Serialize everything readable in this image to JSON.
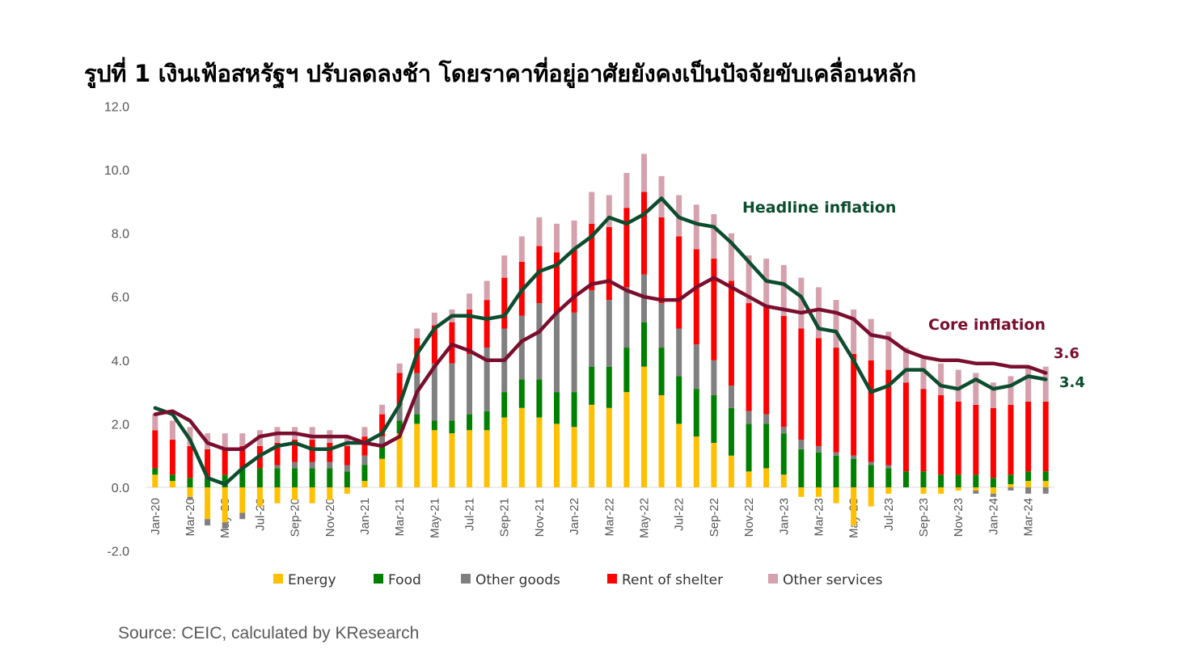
{
  "title": "รูปที่ 1 เงินเฟ้อสหรัฐฯ ปรับลดลงช้า โดยราคาที่อยู่อาศัยยังคงเป็นปัจจัยขับเคลื่อนหลัก",
  "source": "Source: CEIC, calculated by KResearch",
  "chart_data": {
    "type": "bar",
    "stacked": true,
    "ylim": [
      -2,
      12
    ],
    "yticks": [
      "-2.0",
      "0.0",
      "2.0",
      "4.0",
      "6.0",
      "8.0",
      "10.0",
      "12.0"
    ],
    "ytick_values": [
      -2,
      0,
      2,
      4,
      6,
      8,
      10,
      12
    ],
    "categories": [
      "Jan-20",
      "Feb-20",
      "Mar-20",
      "Apr-20",
      "May-20",
      "Jun-20",
      "Jul-20",
      "Aug-20",
      "Sep-20",
      "Oct-20",
      "Nov-20",
      "Dec-20",
      "Jan-21",
      "Feb-21",
      "Mar-21",
      "Apr-21",
      "May-21",
      "Jun-21",
      "Jul-21",
      "Aug-21",
      "Sep-21",
      "Oct-21",
      "Nov-21",
      "Dec-21",
      "Jan-22",
      "Feb-22",
      "Mar-22",
      "Apr-22",
      "May-22",
      "Jun-22",
      "Jul-22",
      "Aug-22",
      "Sep-22",
      "Oct-22",
      "Nov-22",
      "Dec-22",
      "Jan-23",
      "Feb-23",
      "Mar-23",
      "Apr-23",
      "May-23",
      "Jun-23",
      "Jul-23",
      "Aug-23",
      "Sep-23",
      "Oct-23",
      "Nov-23",
      "Dec-23",
      "Jan-24",
      "Feb-24",
      "Mar-24",
      "Apr-24"
    ],
    "x_tick_labels": [
      "Jan-20",
      "Mar-20",
      "May-20",
      "Jul-20",
      "Sep-20",
      "Nov-20",
      "Jan-21",
      "Mar-21",
      "May-21",
      "Jul-21",
      "Sep-21",
      "Nov-21",
      "Jan-22",
      "Mar-22",
      "May-22",
      "Jul-22",
      "Sep-22",
      "Nov-22",
      "Jan-23",
      "Mar-23",
      "May-23",
      "Jul-23",
      "Sep-23",
      "Nov-23",
      "Jan-24",
      "Mar-24"
    ],
    "series": [
      {
        "name": "Energy",
        "color": "#FFC000",
        "values": [
          0.4,
          0.2,
          -0.3,
          -1.0,
          -1.1,
          -0.8,
          -0.6,
          -0.5,
          -0.4,
          -0.5,
          -0.4,
          -0.2,
          0.2,
          0.9,
          1.7,
          2.0,
          1.8,
          1.7,
          1.8,
          1.8,
          2.2,
          2.5,
          2.2,
          2.0,
          1.9,
          2.6,
          2.5,
          3.0,
          3.8,
          2.9,
          2.0,
          1.6,
          1.4,
          1.0,
          0.5,
          0.6,
          0.4,
          -0.3,
          -0.3,
          -0.5,
          -1.2,
          -0.6,
          -0.2,
          0.0,
          -0.2,
          -0.2,
          -0.1,
          -0.1,
          -0.2,
          0.1,
          0.2,
          0.2
        ]
      },
      {
        "name": "Food",
        "color": "#008000",
        "values": [
          0.2,
          0.2,
          0.3,
          0.3,
          0.4,
          0.6,
          0.6,
          0.6,
          0.6,
          0.6,
          0.6,
          0.5,
          0.5,
          0.4,
          0.4,
          0.3,
          0.3,
          0.4,
          0.5,
          0.6,
          0.8,
          0.9,
          1.2,
          1.0,
          1.1,
          1.2,
          1.3,
          1.4,
          1.4,
          1.5,
          1.5,
          1.5,
          1.5,
          1.5,
          1.5,
          1.4,
          1.3,
          1.2,
          1.1,
          1.0,
          0.9,
          0.7,
          0.6,
          0.5,
          0.5,
          0.4,
          0.4,
          0.4,
          0.3,
          0.3,
          0.3,
          0.3
        ]
      },
      {
        "name": "Other goods",
        "color": "#808080",
        "values": [
          0.0,
          0.0,
          -0.1,
          -0.2,
          -0.2,
          -0.2,
          0.0,
          0.1,
          0.2,
          0.2,
          0.2,
          0.2,
          0.3,
          0.3,
          0.5,
          1.3,
          1.8,
          1.8,
          1.9,
          2.0,
          2.0,
          2.0,
          2.4,
          2.5,
          2.5,
          2.4,
          2.1,
          1.9,
          1.5,
          1.4,
          1.5,
          1.4,
          1.1,
          0.7,
          0.4,
          0.3,
          0.2,
          0.3,
          0.2,
          0.1,
          0.1,
          0.1,
          0.1,
          0.0,
          0.0,
          0.0,
          0.0,
          -0.1,
          -0.1,
          -0.1,
          -0.2,
          -0.2
        ]
      },
      {
        "name": "Rent of shelter",
        "color": "#FF0000",
        "values": [
          1.2,
          1.1,
          1.0,
          0.9,
          0.8,
          0.7,
          0.7,
          0.7,
          0.7,
          0.7,
          0.6,
          0.6,
          0.6,
          0.7,
          1.0,
          1.1,
          1.2,
          1.3,
          1.4,
          1.5,
          1.6,
          1.7,
          1.8,
          1.9,
          2.0,
          2.1,
          2.3,
          2.5,
          2.6,
          2.7,
          2.9,
          3.0,
          3.2,
          3.3,
          3.4,
          3.4,
          3.5,
          3.5,
          3.4,
          3.3,
          3.2,
          3.2,
          3.0,
          2.8,
          2.6,
          2.5,
          2.3,
          2.2,
          2.2,
          2.2,
          2.2,
          2.2
        ]
      },
      {
        "name": "Other services",
        "color": "#D6A1AE",
        "values": [
          0.5,
          0.6,
          0.6,
          0.5,
          0.5,
          0.4,
          0.5,
          0.5,
          0.4,
          0.4,
          0.4,
          0.3,
          0.3,
          0.3,
          0.3,
          0.3,
          0.4,
          0.4,
          0.5,
          0.6,
          0.7,
          0.8,
          0.9,
          0.9,
          0.9,
          1.0,
          1.0,
          1.1,
          1.2,
          1.3,
          1.3,
          1.4,
          1.4,
          1.5,
          1.5,
          1.5,
          1.6,
          1.6,
          1.6,
          1.5,
          1.4,
          1.3,
          1.2,
          1.1,
          1.0,
          1.0,
          1.0,
          1.0,
          0.8,
          0.9,
          1.1,
          1.1
        ]
      }
    ],
    "lines": [
      {
        "name": "Headline inflation",
        "color": "#0B4D2E",
        "values": [
          2.5,
          2.3,
          1.5,
          0.3,
          0.1,
          0.6,
          1.0,
          1.3,
          1.4,
          1.2,
          1.2,
          1.4,
          1.4,
          1.7,
          2.6,
          4.2,
          5.0,
          5.4,
          5.4,
          5.3,
          5.4,
          6.2,
          6.8,
          7.0,
          7.5,
          7.9,
          8.5,
          8.3,
          8.6,
          9.1,
          8.5,
          8.3,
          8.2,
          7.7,
          7.1,
          6.5,
          6.4,
          6.0,
          5.0,
          4.9,
          4.0,
          3.0,
          3.2,
          3.7,
          3.7,
          3.2,
          3.1,
          3.4,
          3.1,
          3.2,
          3.5,
          3.4
        ]
      },
      {
        "name": "Core inflation",
        "color": "#7A0E2E",
        "values": [
          2.3,
          2.4,
          2.1,
          1.4,
          1.2,
          1.2,
          1.6,
          1.7,
          1.7,
          1.6,
          1.6,
          1.6,
          1.4,
          1.3,
          1.6,
          3.0,
          3.8,
          4.5,
          4.3,
          4.0,
          4.0,
          4.6,
          4.9,
          5.5,
          6.0,
          6.4,
          6.5,
          6.2,
          6.0,
          5.9,
          5.9,
          6.3,
          6.6,
          6.3,
          6.0,
          5.7,
          5.6,
          5.5,
          5.6,
          5.5,
          5.3,
          4.8,
          4.7,
          4.3,
          4.1,
          4.0,
          4.0,
          3.9,
          3.9,
          3.8,
          3.8,
          3.6
        ]
      }
    ],
    "line_labels": {
      "headline": "Headline inflation",
      "core": "Core inflation"
    },
    "end_labels": {
      "core": "3.6",
      "headline": "3.4"
    },
    "legend": [
      "Energy",
      "Food",
      "Other goods",
      "Rent of shelter",
      "Other services"
    ],
    "legend_position": "bottom",
    "grid": false
  }
}
